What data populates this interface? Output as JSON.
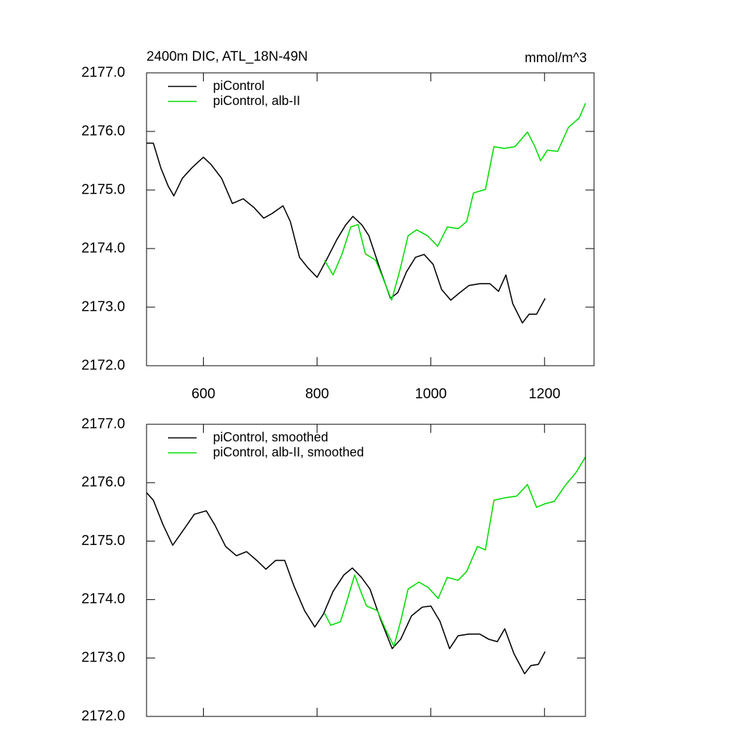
{
  "chart_data": [
    {
      "type": "line",
      "title": "2400m DIC, ATL_18N-49N",
      "units": "mmol/m^3",
      "xlim": [
        500,
        1287
      ],
      "xticks": [
        600,
        800,
        1000,
        1200
      ],
      "show_xtick_labels": true,
      "ylim": [
        2172,
        2177
      ],
      "yticks": [
        {
          "value": 2172,
          "label": "2172.0"
        },
        {
          "value": 2173,
          "label": "2173.0"
        },
        {
          "value": 2174,
          "label": "2174.0"
        },
        {
          "value": 2175,
          "label": "2175.0"
        },
        {
          "value": 2176,
          "label": "2176.0"
        },
        {
          "value": 2177,
          "label": "2177.0"
        }
      ],
      "legend": "upper left",
      "series": [
        {
          "name": "piControl",
          "color": "#000000",
          "x": [
            500,
            512,
            525,
            538,
            548,
            563,
            580,
            600,
            613,
            632,
            651,
            670,
            689,
            706,
            721,
            740,
            753,
            769,
            784,
            800,
            816,
            835,
            850,
            863,
            879,
            891,
            910,
            929,
            942,
            957,
            973,
            988,
            1004,
            1019,
            1035,
            1050,
            1067,
            1086,
            1104,
            1119,
            1132,
            1144,
            1161,
            1173,
            1186,
            1201
          ],
          "values": [
            2175.8,
            2175.8,
            2175.38,
            2175.07,
            2174.9,
            2175.2,
            2175.38,
            2175.56,
            2175.44,
            2175.2,
            2174.77,
            2174.85,
            2174.7,
            2174.52,
            2174.6,
            2174.73,
            2174.46,
            2173.85,
            2173.67,
            2173.51,
            2173.8,
            2174.16,
            2174.4,
            2174.55,
            2174.4,
            2174.22,
            2173.67,
            2173.15,
            2173.25,
            2173.6,
            2173.85,
            2173.9,
            2173.73,
            2173.3,
            2173.12,
            2173.24,
            2173.37,
            2173.4,
            2173.4,
            2173.27,
            2173.55,
            2173.06,
            2172.73,
            2172.88,
            2172.88,
            2173.15
          ]
        },
        {
          "name": "piControl, alb-II",
          "color": "#00dd00",
          "x": [
            813,
            828,
            844,
            859,
            872,
            885,
            903,
            916,
            931,
            945,
            960,
            975,
            994,
            1012,
            1029,
            1048,
            1063,
            1075,
            1096,
            1111,
            1129,
            1148,
            1170,
            1183,
            1193,
            1205,
            1223,
            1242,
            1261,
            1272
          ],
          "values": [
            2173.8,
            2173.55,
            2173.91,
            2174.37,
            2174.41,
            2173.91,
            2173.8,
            2173.49,
            2173.12,
            2173.61,
            2174.22,
            2174.32,
            2174.22,
            2174.04,
            2174.37,
            2174.34,
            2174.46,
            2174.95,
            2175.01,
            2175.74,
            2175.71,
            2175.74,
            2175.99,
            2175.74,
            2175.5,
            2175.68,
            2175.66,
            2176.07,
            2176.23,
            2176.48
          ]
        }
      ]
    },
    {
      "type": "line",
      "xlim": [
        500,
        1272
      ],
      "xticks": [
        600,
        800,
        1000,
        1200
      ],
      "show_xtick_labels": false,
      "ylim": [
        2172,
        2177
      ],
      "yticks": [
        {
          "value": 2172,
          "label": "2172.0"
        },
        {
          "value": 2173,
          "label": "2173.0"
        },
        {
          "value": 2174,
          "label": "2174.0"
        },
        {
          "value": 2175,
          "label": "2175.0"
        },
        {
          "value": 2176,
          "label": "2176.0"
        },
        {
          "value": 2177,
          "label": "2177.0"
        }
      ],
      "legend": "upper left",
      "series": [
        {
          "name": "piControl, smoothed",
          "color": "#000000",
          "x": [
            500,
            512,
            529,
            546,
            567,
            584,
            605,
            620,
            639,
            658,
            676,
            695,
            710,
            727,
            743,
            759,
            778,
            796,
            811,
            828,
            847,
            862,
            878,
            893,
            912,
            932,
            947,
            966,
            985,
            1000,
            1016,
            1033,
            1048,
            1067,
            1086,
            1102,
            1117,
            1130,
            1146,
            1165,
            1176,
            1189,
            1201
          ],
          "values": [
            2175.83,
            2175.7,
            2175.28,
            2174.93,
            2175.22,
            2175.46,
            2175.52,
            2175.28,
            2174.91,
            2174.75,
            2174.82,
            2174.66,
            2174.52,
            2174.67,
            2174.67,
            2174.24,
            2173.81,
            2173.53,
            2173.75,
            2174.14,
            2174.42,
            2174.54,
            2174.38,
            2174.18,
            2173.65,
            2173.16,
            2173.32,
            2173.72,
            2173.87,
            2173.89,
            2173.63,
            2173.16,
            2173.38,
            2173.41,
            2173.41,
            2173.32,
            2173.28,
            2173.5,
            2173.08,
            2172.73,
            2172.87,
            2172.89,
            2173.11
          ]
        },
        {
          "name": "piControl, alb-II, smoothed",
          "color": "#00dd00",
          "x": [
            813,
            824,
            841,
            851,
            866,
            878,
            887,
            906,
            920,
            935,
            947,
            960,
            979,
            995,
            1013,
            1029,
            1048,
            1063,
            1082,
            1096,
            1111,
            1129,
            1151,
            1170,
            1186,
            1201,
            1217,
            1236,
            1255,
            1272
          ],
          "values": [
            2173.77,
            2173.56,
            2173.62,
            2173.93,
            2174.42,
            2174.11,
            2173.89,
            2173.81,
            2173.5,
            2173.2,
            2173.63,
            2174.18,
            2174.3,
            2174.21,
            2174.02,
            2174.38,
            2174.33,
            2174.48,
            2174.91,
            2174.85,
            2175.7,
            2175.74,
            2175.77,
            2175.97,
            2175.58,
            2175.64,
            2175.68,
            2175.95,
            2176.17,
            2176.44
          ]
        }
      ]
    }
  ]
}
